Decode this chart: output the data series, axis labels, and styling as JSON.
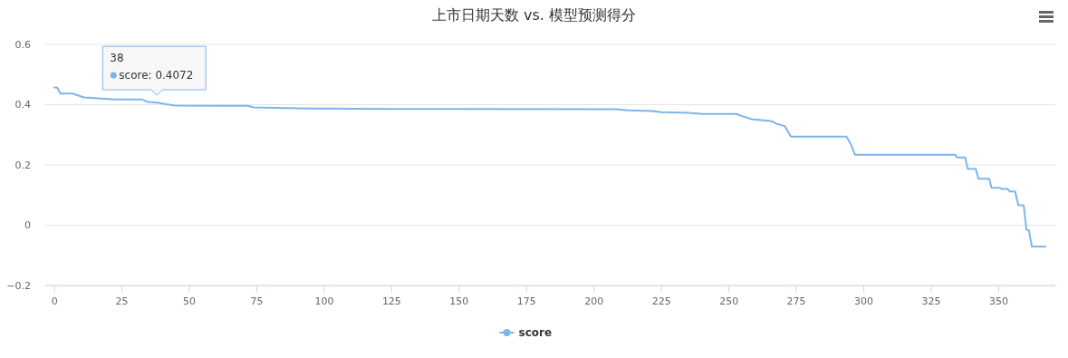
{
  "chart_data": {
    "type": "line",
    "title": "上市日期天数 vs. 模型预测得分",
    "xlim": [
      -3.4,
      371
    ],
    "xticks": [
      0,
      25,
      50,
      75,
      100,
      125,
      150,
      175,
      200,
      225,
      250,
      275,
      300,
      325,
      350
    ],
    "ylim": [
      -0.2,
      0.6
    ],
    "yticks": [
      {
        "value": -0.2,
        "label": "−0.2"
      },
      0,
      0.2,
      0.4,
      0.6
    ],
    "grid": "y",
    "legend": "bottom",
    "series": [
      {
        "name": "score",
        "color": "#7cb5ec",
        "x": [
          0,
          1,
          2.2,
          6.7,
          11,
          22.4,
          32.5,
          34.6,
          38,
          41,
          44.6,
          71.5,
          74,
          94,
          127.5,
          208,
          212.5,
          221.5,
          225,
          235,
          240.5,
          252.7,
          255,
          258.4,
          266,
          267.6,
          270.7,
          273,
          293.6,
          295.3,
          296.7,
          333.9,
          334.6,
          337.6,
          338.5,
          341.5,
          342.5,
          346.5,
          347.3,
          350.5,
          351.3,
          353.3,
          354.2,
          356.1,
          357.3,
          359.3,
          360.3,
          361.2,
          362.3,
          367.3
        ],
        "values": [
          0.457,
          0.457,
          0.437,
          0.437,
          0.424,
          0.417,
          0.417,
          0.409,
          0.407,
          0.402,
          0.397,
          0.396,
          0.391,
          0.387,
          0.386,
          0.385,
          0.381,
          0.379,
          0.375,
          0.373,
          0.369,
          0.369,
          0.362,
          0.352,
          0.345,
          0.337,
          0.329,
          0.294,
          0.294,
          0.267,
          0.234,
          0.234,
          0.225,
          0.225,
          0.187,
          0.187,
          0.154,
          0.154,
          0.125,
          0.124,
          0.12,
          0.12,
          0.112,
          0.112,
          0.066,
          0.066,
          -0.015,
          -0.017,
          -0.071,
          -0.071
        ]
      }
    ],
    "annotations": [
      {
        "text": "38\nscore: 0.4072",
        "x": 38,
        "y": 0.4072
      }
    ]
  }
}
